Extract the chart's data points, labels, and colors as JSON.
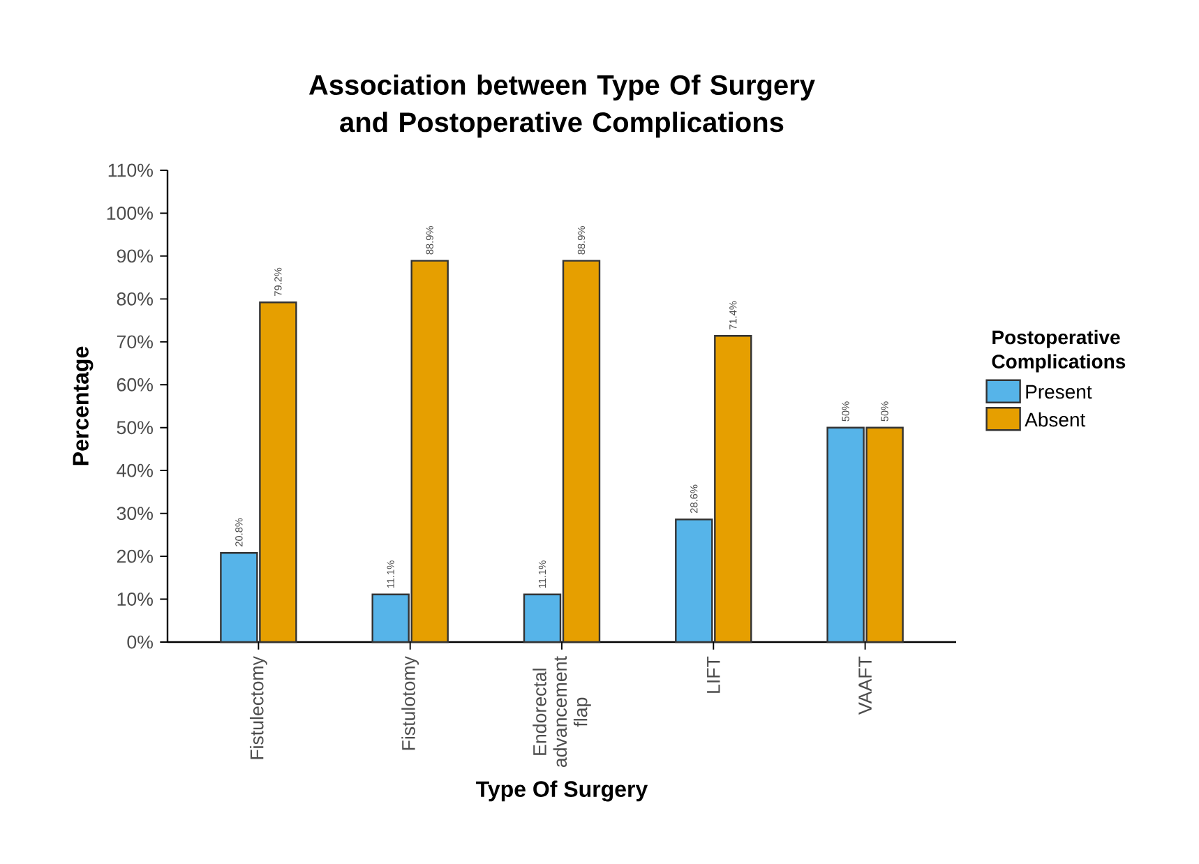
{
  "chart_data": {
    "type": "bar",
    "title": "Association between Type Of Surgery and Postoperative Complications",
    "xlabel": "Type Of Surgery",
    "ylabel": "Percentage",
    "legend_title": "Postoperative Complications",
    "categories": [
      "Fistulectomy",
      "Fistulotomy",
      "Endorectal advancement flap",
      "LIFT",
      "VAAFT"
    ],
    "series": [
      {
        "name": "Present",
        "color": "#56b4e9",
        "values": [
          20.8,
          11.1,
          11.1,
          28.6,
          50
        ],
        "value_labels": [
          "20.8%",
          "11.1%",
          "11.1%",
          "28.6%",
          "50%"
        ]
      },
      {
        "name": "Absent",
        "color": "#e69f00",
        "values": [
          79.2,
          88.9,
          88.9,
          71.4,
          50
        ],
        "value_labels": [
          "79.2%",
          "88.9%",
          "88.9%",
          "71.4%",
          "50%"
        ]
      }
    ],
    "ylim": [
      0,
      110
    ],
    "yticks": [
      {
        "value": 0,
        "label": "0%"
      },
      {
        "value": 10,
        "label": "10%"
      },
      {
        "value": 20,
        "label": "20%"
      },
      {
        "value": 30,
        "label": "30%"
      },
      {
        "value": 40,
        "label": "40%"
      },
      {
        "value": 50,
        "label": "50%"
      },
      {
        "value": 60,
        "label": "60%"
      },
      {
        "value": 70,
        "label": "70%"
      },
      {
        "value": 80,
        "label": "80%"
      },
      {
        "value": 90,
        "label": "90%"
      },
      {
        "value": 100,
        "label": "100%"
      },
      {
        "value": 110,
        "label": "110%"
      }
    ],
    "legend": "right",
    "grid": false
  }
}
